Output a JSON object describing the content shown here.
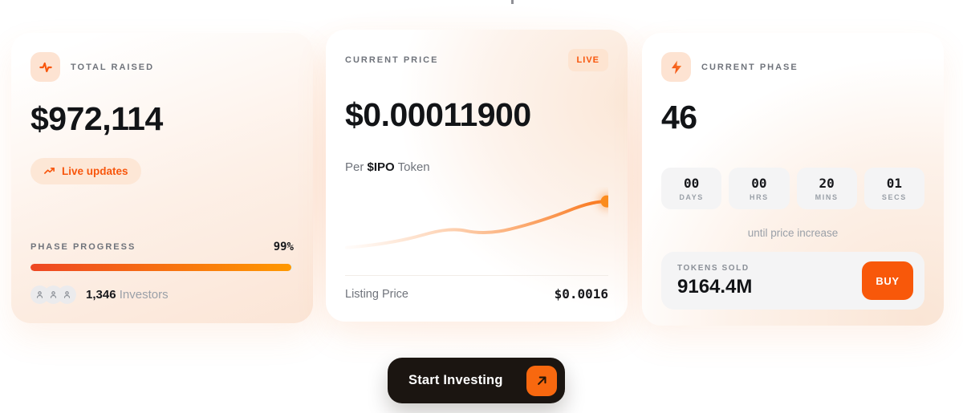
{
  "colors": {
    "accent_orange": "#F8580A",
    "accent_soft_bg": "#FDE4D1",
    "progress_gradient": [
      "#EE4723",
      "#FF9800"
    ],
    "chart_line": "#F97316",
    "cta_dark": "#1B1511",
    "label_gray": "#6F737B",
    "muted_gray": "#9AA0A8"
  },
  "cards": {
    "total_raised": {
      "label": "TOTAL RAISED",
      "icon": "activity-pulse-icon",
      "value": "$972,114",
      "live_updates_label": "Live updates",
      "progress_label": "PHASE PROGRESS",
      "progress_value": "99%",
      "progress_percent": 99,
      "investors_count": "1,346",
      "investors_label": "Investors"
    },
    "current_price": {
      "label": "CURRENT PRICE",
      "live_badge": "LIVE",
      "value": "$0.00011900",
      "per_prefix": "Per",
      "per_token": "$IPO",
      "per_suffix": "Token",
      "listing_price_label": "Listing Price",
      "listing_price_value": "$0.0016"
    },
    "current_phase": {
      "label": "CURRENT PHASE",
      "icon": "lightning-bolt-icon",
      "value": "46",
      "countdown": [
        {
          "value": "00",
          "unit": "DAYS"
        },
        {
          "value": "00",
          "unit": "HRS"
        },
        {
          "value": "20",
          "unit": "MINS"
        },
        {
          "value": "01",
          "unit": "SECS"
        }
      ],
      "countdown_caption": "until price increase",
      "tokens_sold_label": "TOKENS SOLD",
      "tokens_sold_value": "9164.4M",
      "buy_label": "BUY"
    }
  },
  "cta": {
    "label": "Start Investing",
    "icon": "arrow-up-right-icon"
  },
  "chart_data": {
    "type": "line",
    "title": "",
    "xlabel": "",
    "ylabel": "",
    "x": [
      0,
      1,
      2,
      3,
      4,
      5,
      6,
      7,
      8
    ],
    "series": [
      {
        "name": "token-price-trend",
        "values": [
          0.05,
          0.08,
          0.2,
          0.3,
          0.26,
          0.3,
          0.44,
          0.62,
          0.78
        ]
      }
    ],
    "axes": "hidden",
    "grid": false,
    "legend": "none",
    "style": {
      "stroke": "#F97316",
      "fades_in_from_left": true,
      "endpoint_dot": true,
      "endpoint_dot_glow": true
    }
  }
}
